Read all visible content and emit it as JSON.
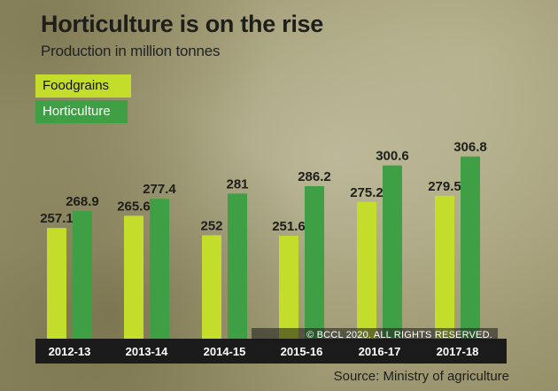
{
  "colors": {
    "foodgrains": "#c4dc2a",
    "horticulture": "#3f9f44"
  },
  "chart_data": {
    "type": "bar",
    "title": "Horticulture is on the rise",
    "subtitle": "Production in million tonnes",
    "categories": [
      "2012-13",
      "2013-14",
      "2014-15",
      "2015-16",
      "2016-17",
      "2017-18"
    ],
    "series": [
      {
        "name": "Foodgrains",
        "values": [
          257.1,
          265.6,
          252,
          251.6,
          275.2,
          279.5
        ]
      },
      {
        "name": "Horticulture",
        "values": [
          268.9,
          277.4,
          281,
          286.2,
          300.6,
          306.8
        ]
      }
    ],
    "data_labels": [
      [
        "257.1",
        "265.6",
        "252",
        "251.6",
        "275.2",
        "279.5"
      ],
      [
        "268.9",
        "277.4",
        "281",
        "286.2",
        "300.6",
        "306.8"
      ]
    ],
    "legend": "top-left",
    "grid": false
  },
  "copyright": "© BCCL 2020. ALL RIGHTS RESERVED.",
  "source": "Source: Ministry of agriculture"
}
